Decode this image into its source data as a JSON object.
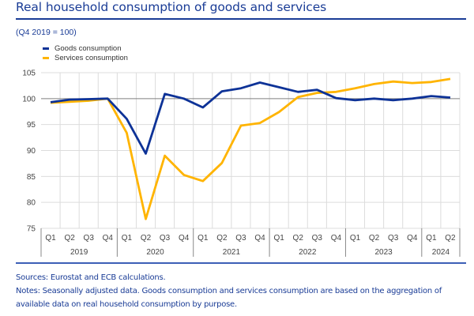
{
  "header": {
    "title": "Real household consumption of goods and services",
    "subtitle": "(Q4 2019 = 100)"
  },
  "colors": {
    "title": "#1a3c96",
    "goods": "#0d3297",
    "services": "#ffb400",
    "grid": "#dcdcdc",
    "baseline": "#7f7f7f",
    "axis_text": "#444444"
  },
  "footer": {
    "sources": "Sources: Eurostat and ECB calculations.",
    "notes_line1": "Notes: Seasonally adjusted data. Goods consumption and services consumption are based on the aggregation of",
    "notes_line2": "available data on real household consumption by purpose."
  },
  "chart_data": {
    "type": "line",
    "title": "Real household consumption of goods and services",
    "subtitle": "(Q4 2019 = 100)",
    "xlabel": "",
    "ylabel": "",
    "ylim": [
      75,
      105
    ],
    "yticks": [
      75,
      80,
      85,
      90,
      95,
      100,
      105
    ],
    "reference_line": 100,
    "grid": true,
    "legend_position": "top-left",
    "x": [
      "Q1 2019",
      "Q2 2019",
      "Q3 2019",
      "Q4 2019",
      "Q1 2020",
      "Q2 2020",
      "Q3 2020",
      "Q4 2020",
      "Q1 2021",
      "Q2 2021",
      "Q3 2021",
      "Q4 2021",
      "Q1 2022",
      "Q2 2022",
      "Q3 2022",
      "Q4 2022",
      "Q1 2023",
      "Q2 2023",
      "Q3 2023",
      "Q4 2023",
      "Q1 2024",
      "Q2 2024"
    ],
    "quarter_labels": [
      "Q1",
      "Q2",
      "Q3",
      "Q4",
      "Q1",
      "Q2",
      "Q3",
      "Q4",
      "Q1",
      "Q2",
      "Q3",
      "Q4",
      "Q1",
      "Q2",
      "Q3",
      "Q4",
      "Q1",
      "Q2",
      "Q3",
      "Q4",
      "Q1",
      "Q2"
    ],
    "years": [
      {
        "label": "2019",
        "quarters": 4
      },
      {
        "label": "2020",
        "quarters": 4
      },
      {
        "label": "2021",
        "quarters": 4
      },
      {
        "label": "2022",
        "quarters": 4
      },
      {
        "label": "2023",
        "quarters": 4
      },
      {
        "label": "2024",
        "quarters": 2
      }
    ],
    "series": [
      {
        "name": "Goods consumption",
        "color": "#0d3297",
        "values": [
          99.3,
          99.8,
          99.9,
          100.0,
          96.1,
          89.4,
          100.9,
          100.0,
          98.3,
          101.4,
          102.0,
          103.1,
          102.2,
          101.3,
          101.7,
          100.1,
          99.7,
          100.0,
          99.7,
          100.0,
          100.5,
          100.2
        ]
      },
      {
        "name": "Services consumption",
        "color": "#ffb400",
        "values": [
          99.2,
          99.4,
          99.6,
          100.0,
          93.4,
          76.8,
          89.0,
          85.3,
          84.1,
          87.6,
          94.8,
          95.3,
          97.4,
          100.3,
          101.1,
          101.3,
          102.0,
          102.8,
          103.3,
          103.0,
          103.2,
          103.8
        ]
      }
    ]
  }
}
